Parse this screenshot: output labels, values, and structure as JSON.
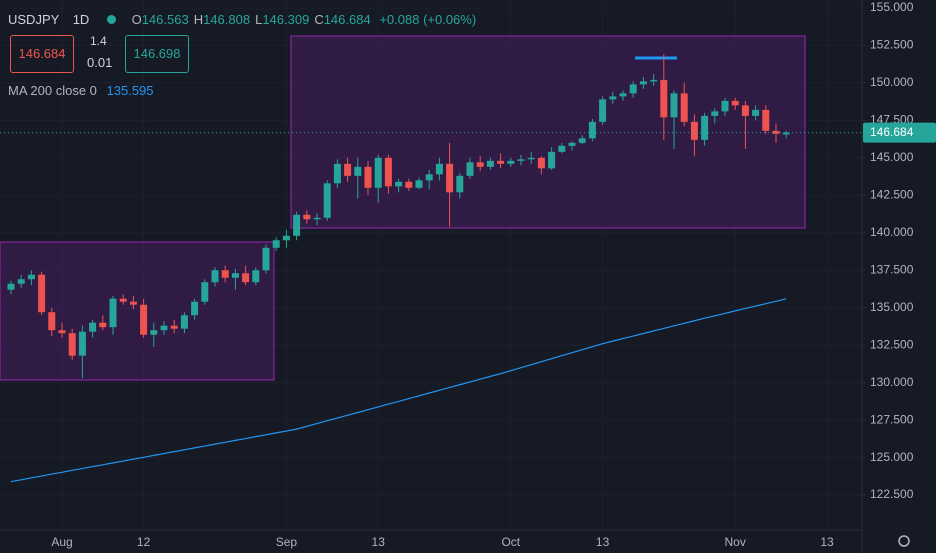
{
  "chart_data": {
    "type": "candlestick",
    "title": "USDJPY",
    "interval": "1D",
    "ohlc_labels": [
      "O",
      "H",
      "L",
      "C"
    ],
    "ohlc_values": [
      146.563,
      146.808,
      146.309,
      146.684
    ],
    "change": "+0.088 (+0.06%)",
    "sell_price": 146.684,
    "spread": 1.4,
    "lot": 0.01,
    "buy_price": 146.698,
    "up_color": "#26a69a",
    "down_color": "#ef5350",
    "grid": true,
    "categories": [
      null,
      null,
      null,
      null,
      null,
      "Aug",
      null,
      null,
      null,
      null,
      null,
      null,
      null,
      "12",
      null,
      null,
      null,
      null,
      null,
      null,
      null,
      null,
      null,
      null,
      null,
      null,
      null,
      "Sep",
      null,
      null,
      null,
      null,
      null,
      null,
      null,
      null,
      "13",
      null,
      null,
      null,
      null,
      null,
      null,
      null,
      null,
      null,
      null,
      null,
      null,
      "Oct",
      null,
      null,
      null,
      null,
      null,
      null,
      null,
      null,
      "13",
      null,
      null,
      null,
      null,
      null,
      null,
      null,
      null,
      null,
      null,
      null,
      null,
      "Nov",
      null,
      null,
      null,
      null,
      null,
      null,
      null,
      null,
      "13"
    ],
    "open": [
      136.2,
      136.6,
      136.9,
      137.2,
      134.7,
      133.5,
      133.3,
      131.8,
      133.4,
      134.0,
      133.7,
      135.6,
      135.4,
      135.2,
      133.2,
      133.5,
      133.8,
      133.6,
      134.5,
      135.4,
      136.7,
      137.5,
      137.0,
      137.3,
      136.7,
      137.5,
      139.0,
      139.5,
      139.8,
      141.2,
      140.9,
      141.0,
      143.3,
      144.6,
      143.8,
      144.4,
      143.0,
      145.0,
      143.1,
      143.4,
      143.0,
      143.5,
      143.9,
      144.6,
      142.7,
      143.8,
      144.7,
      144.4,
      144.8,
      144.6,
      144.8,
      144.9,
      145.0,
      144.3,
      145.4,
      145.8,
      146.0,
      146.3,
      147.4,
      148.9,
      149.1,
      149.3,
      149.9,
      150.1,
      150.2,
      147.7,
      149.3,
      147.4,
      146.2,
      147.8,
      148.1,
      148.8,
      148.5,
      147.8,
      148.2,
      146.8,
      146.563,
      null,
      null,
      null,
      null
    ],
    "high": [
      136.8,
      137.2,
      137.5,
      137.4,
      135.0,
      134.0,
      133.6,
      133.8,
      134.2,
      134.5,
      135.8,
      135.9,
      135.8,
      135.6,
      134.0,
      134.1,
      134.2,
      134.7,
      135.6,
      136.9,
      137.7,
      137.8,
      137.6,
      137.8,
      137.7,
      139.2,
      139.7,
      140.2,
      141.4,
      141.5,
      141.3,
      143.5,
      144.9,
      145.0,
      145.0,
      144.8,
      145.2,
      145.2,
      143.6,
      143.6,
      143.7,
      144.2,
      145.0,
      146.0,
      144.0,
      145.0,
      145.1,
      145.0,
      145.3,
      145.0,
      145.2,
      145.4,
      145.1,
      145.7,
      146.0,
      146.1,
      146.5,
      147.6,
      149.1,
      149.4,
      149.5,
      150.1,
      150.4,
      150.6,
      151.9,
      149.5,
      150.0,
      147.9,
      148.0,
      148.3,
      149.0,
      149.0,
      148.8,
      148.5,
      148.5,
      147.3,
      146.808,
      null,
      null,
      null,
      null
    ],
    "low": [
      135.9,
      136.3,
      136.5,
      134.5,
      133.1,
      133.0,
      131.5,
      130.3,
      133.0,
      133.5,
      133.2,
      135.2,
      134.9,
      133.0,
      132.4,
      133.2,
      133.3,
      133.3,
      134.2,
      135.2,
      136.4,
      136.7,
      136.2,
      136.5,
      136.5,
      137.3,
      138.8,
      139.0,
      139.5,
      140.6,
      140.5,
      140.8,
      143.0,
      143.4,
      142.3,
      142.5,
      142.0,
      142.6,
      142.7,
      142.8,
      142.9,
      142.9,
      143.5,
      140.4,
      142.3,
      143.6,
      144.1,
      144.2,
      144.3,
      144.4,
      144.5,
      144.6,
      143.9,
      144.2,
      145.3,
      145.5,
      145.9,
      146.1,
      147.2,
      148.6,
      148.8,
      149.0,
      149.6,
      149.8,
      146.2,
      145.6,
      147.1,
      145.1,
      145.8,
      147.3,
      147.8,
      148.2,
      145.6,
      147.5,
      146.6,
      146.0,
      146.309,
      null,
      null,
      null,
      null
    ],
    "close": [
      136.6,
      136.9,
      137.2,
      134.7,
      133.5,
      133.3,
      131.8,
      133.4,
      134.0,
      133.7,
      135.6,
      135.4,
      135.2,
      133.2,
      133.5,
      133.8,
      133.6,
      134.5,
      135.4,
      136.7,
      137.5,
      137.0,
      137.3,
      136.7,
      137.5,
      139.0,
      139.5,
      139.8,
      141.2,
      140.9,
      141.0,
      143.3,
      144.6,
      143.8,
      144.4,
      143.0,
      145.0,
      143.1,
      143.4,
      143.0,
      143.5,
      143.9,
      144.6,
      142.7,
      143.8,
      144.7,
      144.4,
      144.8,
      144.6,
      144.8,
      144.9,
      145.0,
      144.3,
      145.4,
      145.8,
      146.0,
      146.3,
      147.4,
      148.9,
      149.1,
      149.3,
      149.9,
      150.1,
      150.2,
      147.7,
      149.3,
      147.4,
      146.2,
      147.8,
      148.1,
      148.8,
      148.5,
      147.8,
      148.2,
      146.8,
      146.6,
      146.684,
      null,
      null,
      null,
      null
    ],
    "series": [
      {
        "name": "MA 200 close 0",
        "color": "#2196f3",
        "values": [
          123.4,
          123.52,
          123.65,
          123.77,
          123.9,
          124.02,
          124.15,
          124.27,
          124.4,
          124.52,
          124.65,
          124.77,
          124.9,
          125.02,
          125.15,
          125.27,
          125.4,
          125.52,
          125.65,
          125.77,
          125.9,
          126.02,
          126.15,
          126.27,
          126.4,
          126.52,
          126.65,
          126.77,
          126.9,
          127.09,
          127.27,
          127.46,
          127.64,
          127.83,
          128.01,
          128.2,
          128.38,
          128.57,
          128.75,
          128.94,
          129.12,
          129.31,
          129.49,
          129.68,
          129.86,
          130.05,
          130.23,
          130.42,
          130.6,
          130.8,
          131.0,
          131.2,
          131.4,
          131.6,
          131.8,
          132.0,
          132.2,
          132.4,
          132.6,
          132.77,
          132.94,
          133.11,
          133.28,
          133.45,
          133.62,
          133.79,
          133.96,
          134.13,
          134.3,
          134.46,
          134.62,
          134.79,
          134.95,
          135.11,
          135.27,
          135.43,
          135.595,
          null,
          null,
          null,
          null
        ]
      }
    ],
    "ylim": [
      120.17,
      155.53
    ],
    "yticks": [
      {
        "value": 122.5,
        "label": "122.500"
      },
      {
        "value": 125,
        "label": "125.000"
      },
      {
        "value": 127.5,
        "label": "127.500"
      },
      {
        "value": 130,
        "label": "130.000"
      },
      {
        "value": 132.5,
        "label": "132.500"
      },
      {
        "value": 135,
        "label": "135.000"
      },
      {
        "value": 137.5,
        "label": "137.500"
      },
      {
        "value": 140,
        "label": "140.000"
      },
      {
        "value": 142.5,
        "label": "142.500"
      },
      {
        "value": 145,
        "label": "145.000"
      },
      {
        "value": 147.5,
        "label": "147.500"
      },
      {
        "value": 150,
        "label": "150.000"
      },
      {
        "value": 152.5,
        "label": "152.500"
      },
      {
        "value": 155,
        "label": "155.000"
      }
    ]
  }
}
